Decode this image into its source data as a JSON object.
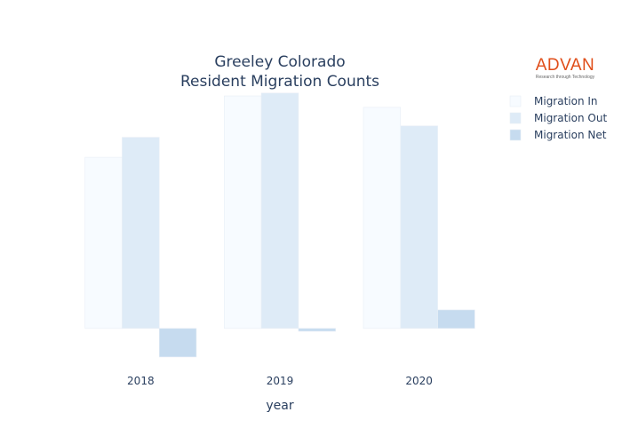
{
  "chart_data": {
    "type": "bar",
    "title": [
      "Greeley Colorado",
      "Resident Migration Counts"
    ],
    "xlabel": "year",
    "ylabel": "",
    "categories": [
      "2018",
      "2019",
      "2020"
    ],
    "series": [
      {
        "name": "Migration In",
        "values": [
          12000,
          16300,
          15500
        ],
        "color": "#f7fbff"
      },
      {
        "name": "Migration Out",
        "values": [
          13400,
          16500,
          14200
        ],
        "color": "#deebf7"
      },
      {
        "name": "Migration Net",
        "values": [
          -2000,
          -200,
          1300
        ],
        "color": "#c6dbef"
      }
    ],
    "ylim": [
      -2500,
      16800
    ],
    "grid": false,
    "show_y_axis": false,
    "legend_position": "top-right"
  },
  "logo": {
    "word": "ADVAN",
    "tagline": "Research through Technology"
  }
}
